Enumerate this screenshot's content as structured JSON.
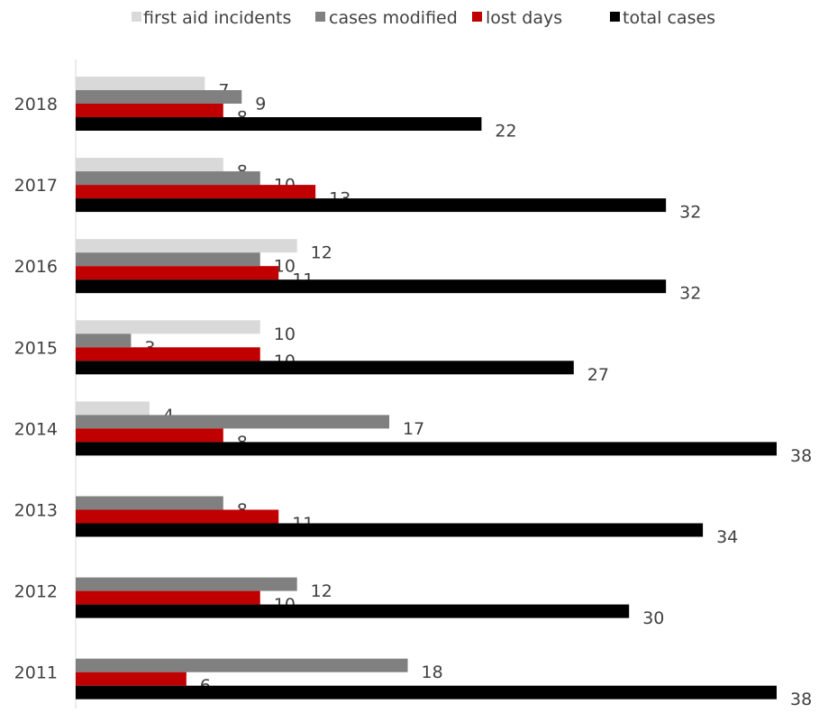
{
  "chart_data": {
    "type": "bar",
    "orientation": "horizontal",
    "categories": [
      "2018",
      "2017",
      "2016",
      "2015",
      "2014",
      "2013",
      "2012",
      "2011"
    ],
    "series": [
      {
        "name": "first aid incidents",
        "color": "#d9d9d9",
        "values": [
          7,
          8,
          12,
          10,
          4,
          null,
          null,
          null
        ]
      },
      {
        "name": "cases modified",
        "color": "#808080",
        "values": [
          9,
          10,
          10,
          3,
          17,
          8,
          12,
          18
        ]
      },
      {
        "name": "lost days",
        "color": "#c00000",
        "values": [
          8,
          13,
          11,
          10,
          8,
          11,
          10,
          6
        ]
      },
      {
        "name": "total cases",
        "color": "#000000",
        "values": [
          22,
          32,
          32,
          27,
          38,
          34,
          30,
          38
        ]
      }
    ],
    "xlim": [
      0,
      38
    ],
    "grid": false,
    "legend_position": "top",
    "data_labels": true
  }
}
